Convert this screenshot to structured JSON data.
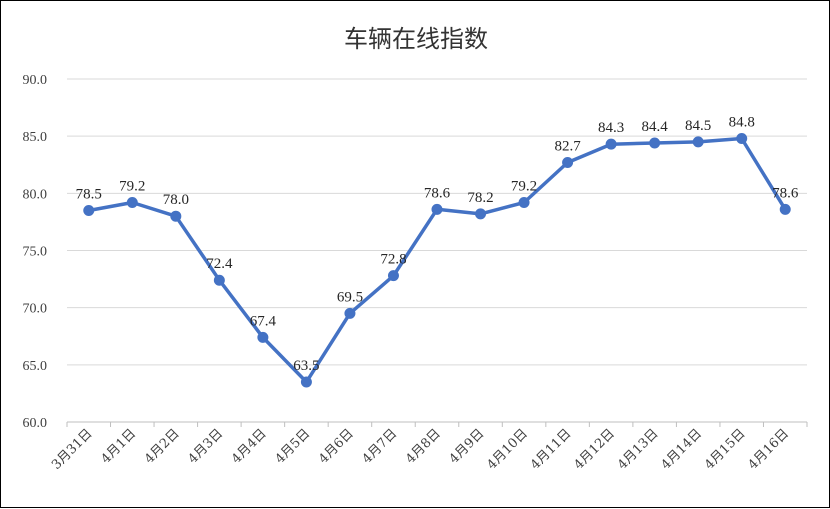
{
  "chart_data": {
    "type": "line",
    "title": "车辆在线指数",
    "xlabel": "",
    "ylabel": "",
    "ylim": [
      60,
      90
    ],
    "yticks": [
      "60.0",
      "65.0",
      "70.0",
      "75.0",
      "80.0",
      "85.0",
      "90.0"
    ],
    "grid": true,
    "legend": "none",
    "line_color": "#4472C4",
    "categories": [
      "3月31日",
      "4月1日",
      "4月2日",
      "4月3日",
      "4月4日",
      "4月5日",
      "4月6日",
      "4月7日",
      "4月8日",
      "4月9日",
      "4月10日",
      "4月11日",
      "4月12日",
      "4月13日",
      "4月14日",
      "4月15日",
      "4月16日"
    ],
    "values": [
      78.5,
      79.2,
      78.0,
      72.4,
      67.4,
      63.5,
      69.5,
      72.8,
      78.6,
      78.2,
      79.2,
      82.7,
      84.3,
      84.4,
      84.5,
      84.8,
      78.6
    ],
    "value_labels": [
      "78.5",
      "79.2",
      "78.0",
      "72.4",
      "67.4",
      "63.5",
      "69.5",
      "72.8",
      "78.6",
      "78.2",
      "79.2",
      "82.7",
      "84.3",
      "84.4",
      "84.5",
      "84.8",
      "78.6"
    ]
  }
}
